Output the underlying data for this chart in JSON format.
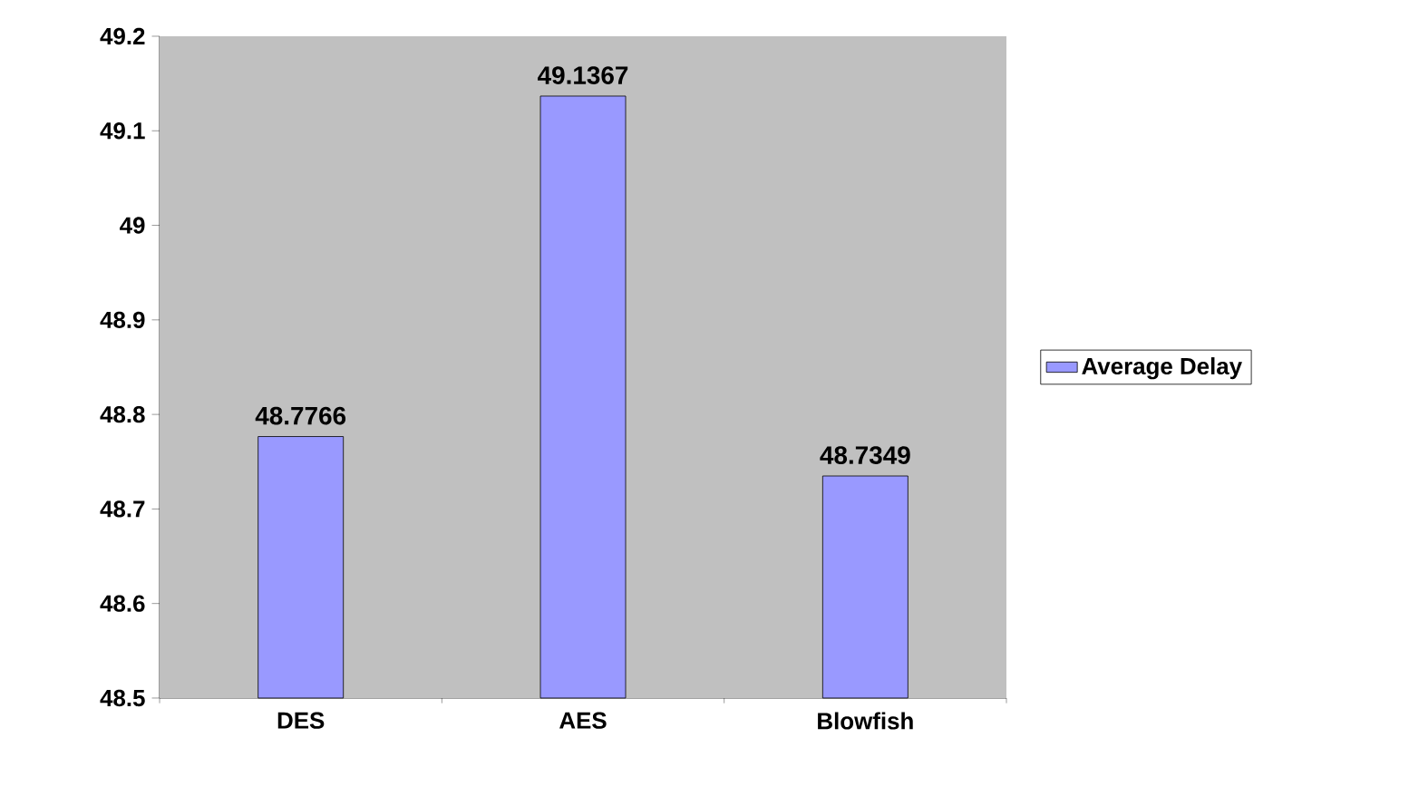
{
  "chart_data": {
    "type": "bar",
    "categories": [
      "DES",
      "AES",
      "Blowfish"
    ],
    "series": [
      {
        "name": "Average Delay",
        "color": "#9999ff",
        "values": [
          48.7766,
          49.1367,
          48.7349
        ]
      }
    ],
    "ylim": [
      48.5,
      49.2
    ],
    "yticks": [
      48.5,
      48.6,
      48.7,
      48.8,
      48.9,
      49,
      49.1,
      49.2
    ],
    "data_labels": true,
    "legend": "right",
    "grid": false
  }
}
